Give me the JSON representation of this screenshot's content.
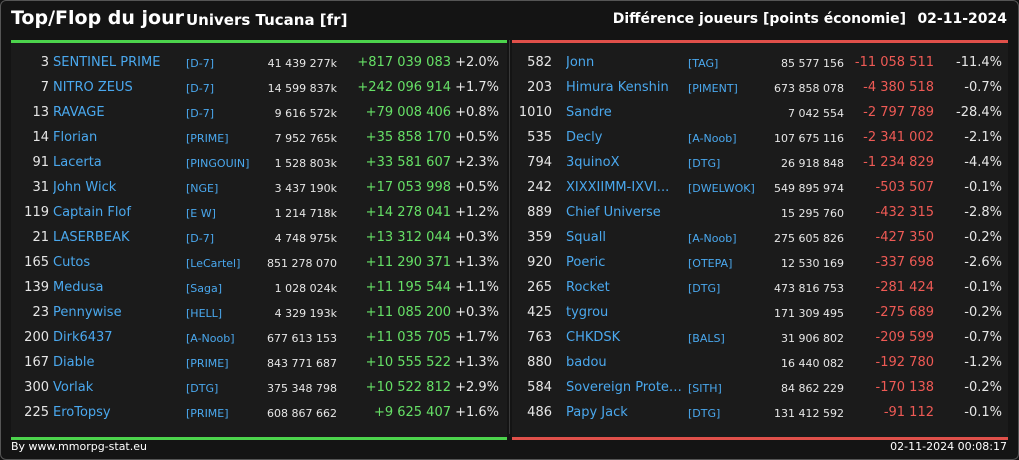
{
  "header": {
    "title": "Top/Flop du jour",
    "universe": "Univers Tucana [fr]",
    "metric": "Différence joueurs [points économie]",
    "date": "02-11-2024"
  },
  "colors": {
    "gain": "#66e066",
    "loss": "#ef5a55",
    "name": "#4aa8ee",
    "top_bar": "#4cd34c",
    "flop_bar": "#e0504a"
  },
  "top": [
    {
      "rank": "3",
      "name": "SENTINEL PRIME",
      "tag": "[D-7]",
      "points": "41 439 277k",
      "diff": "+817 039 083",
      "pct": "+2.0%"
    },
    {
      "rank": "7",
      "name": "NITRO ZEUS",
      "tag": "[D-7]",
      "points": "14 599 837k",
      "diff": "+242 096 914",
      "pct": "+1.7%"
    },
    {
      "rank": "13",
      "name": "RAVAGE",
      "tag": "[D-7]",
      "points": "9 616 572k",
      "diff": "+79 008 406",
      "pct": "+0.8%"
    },
    {
      "rank": "14",
      "name": "Florian",
      "tag": "[PRIME]",
      "points": "7 952 765k",
      "diff": "+35 858 170",
      "pct": "+0.5%"
    },
    {
      "rank": "91",
      "name": "Lacerta",
      "tag": "[PINGOUIN]",
      "points": "1 528 803k",
      "diff": "+33 581 607",
      "pct": "+2.3%"
    },
    {
      "rank": "31",
      "name": "John Wick",
      "tag": "[NGE]",
      "points": "3 437 190k",
      "diff": "+17 053 998",
      "pct": "+0.5%"
    },
    {
      "rank": "119",
      "name": "Captain Flof",
      "tag": "[E W]",
      "points": "1 214 718k",
      "diff": "+14 278 041",
      "pct": "+1.2%"
    },
    {
      "rank": "21",
      "name": "LASERBEAK",
      "tag": "[D-7]",
      "points": "4 748 975k",
      "diff": "+13 312 044",
      "pct": "+0.3%"
    },
    {
      "rank": "165",
      "name": "Cutos",
      "tag": "[LeCartel]",
      "points": "851 278 070",
      "diff": "+11 290 371",
      "pct": "+1.3%"
    },
    {
      "rank": "139",
      "name": "Medusa",
      "tag": "[Saga]",
      "points": "1 028 024k",
      "diff": "+11 195 544",
      "pct": "+1.1%"
    },
    {
      "rank": "23",
      "name": "Pennywise",
      "tag": "[HELL]",
      "points": "4 329 193k",
      "diff": "+11 085 200",
      "pct": "+0.3%"
    },
    {
      "rank": "200",
      "name": "Dirk6437",
      "tag": "[A-Noob]",
      "points": "677 613 153",
      "diff": "+11 035 705",
      "pct": "+1.7%"
    },
    {
      "rank": "167",
      "name": "Diable",
      "tag": "[PRIME]",
      "points": "843 771 687",
      "diff": "+10 555 522",
      "pct": "+1.3%"
    },
    {
      "rank": "300",
      "name": "Vorlak",
      "tag": "[DTG]",
      "points": "375 348 798",
      "diff": "+10 522 812",
      "pct": "+2.9%"
    },
    {
      "rank": "225",
      "name": "EroTopsy",
      "tag": "[PRIME]",
      "points": "608 867 662",
      "diff": "+9 625 407",
      "pct": "+1.6%"
    }
  ],
  "flop": [
    {
      "rank": "582",
      "name": "Jonn",
      "tag": "[TAG]",
      "points": "85 577 156",
      "diff": "-11 058 511",
      "pct": "-11.4%"
    },
    {
      "rank": "203",
      "name": "Himura Kenshin",
      "tag": "[PIMENT]",
      "points": "673 858 078",
      "diff": "-4 380 518",
      "pct": "-0.7%"
    },
    {
      "rank": "1010",
      "name": "Sandre",
      "tag": "",
      "points": "7 042 554",
      "diff": "-2 797 789",
      "pct": "-28.4%"
    },
    {
      "rank": "535",
      "name": "Decly",
      "tag": "[A-Noob]",
      "points": "107 675 116",
      "diff": "-2 341 002",
      "pct": "-2.1%"
    },
    {
      "rank": "794",
      "name": "3quinoX",
      "tag": "[DTG]",
      "points": "26 918 848",
      "diff": "-1 234 829",
      "pct": "-4.4%"
    },
    {
      "rank": "242",
      "name": "XIXXIIMM-IXVI...",
      "tag": "[DWELWOK]",
      "points": "549 895 974",
      "diff": "-503 507",
      "pct": "-0.1%"
    },
    {
      "rank": "889",
      "name": "Chief Universe",
      "tag": "",
      "points": "15 295 760",
      "diff": "-432 315",
      "pct": "-2.8%"
    },
    {
      "rank": "359",
      "name": "Squall",
      "tag": "[A-Noob]",
      "points": "275 605 826",
      "diff": "-427 350",
      "pct": "-0.2%"
    },
    {
      "rank": "920",
      "name": "Poeric",
      "tag": "[OTEPA]",
      "points": "12 530 169",
      "diff": "-337 698",
      "pct": "-2.6%"
    },
    {
      "rank": "265",
      "name": "Rocket",
      "tag": "[DTG]",
      "points": "473 816 753",
      "diff": "-281 424",
      "pct": "-0.1%"
    },
    {
      "rank": "425",
      "name": "tygrou",
      "tag": "",
      "points": "171 309 495",
      "diff": "-275 689",
      "pct": "-0.2%"
    },
    {
      "rank": "763",
      "name": "CHKDSK",
      "tag": "[BALS]",
      "points": "31 906 802",
      "diff": "-209 599",
      "pct": "-0.7%"
    },
    {
      "rank": "880",
      "name": "badou",
      "tag": "",
      "points": "16 440 082",
      "diff": "-192 780",
      "pct": "-1.2%"
    },
    {
      "rank": "584",
      "name": "Sovereign Proteu...",
      "tag": "[SITH]",
      "points": "84 862 229",
      "diff": "-170 138",
      "pct": "-0.2%"
    },
    {
      "rank": "486",
      "name": "Papy Jack",
      "tag": "[DTG]",
      "points": "131 412 592",
      "diff": "-91 112",
      "pct": "-0.1%"
    }
  ],
  "footer": {
    "source": "By www.mmorpg-stat.eu",
    "timestamp": "02-11-2024 00:08:17"
  }
}
